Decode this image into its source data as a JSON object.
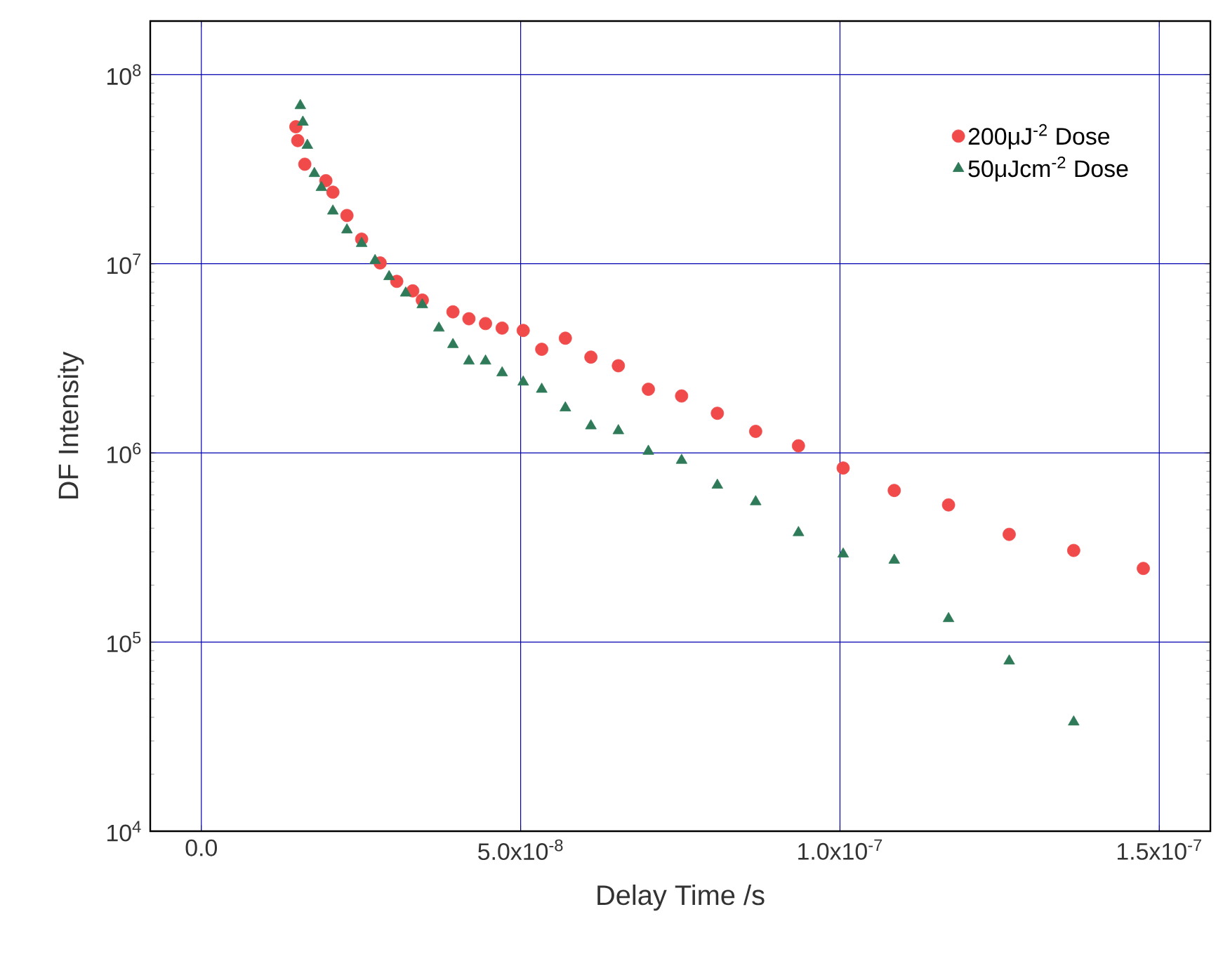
{
  "chart_data": {
    "type": "scatter",
    "xlabel": "Delay Time /s",
    "ylabel": "DF Intensity",
    "log": "y",
    "grid": true,
    "legend": "top right",
    "xlim": [
      -8e-09,
      1.58e-07
    ],
    "ylim": [
      10000,
      192000000.0
    ],
    "xticks": [
      {
        "value": 0,
        "label": "0.0"
      },
      {
        "value": 5e-08,
        "label": "5.0x10$^{-8}$"
      },
      {
        "value": 1e-07,
        "label": "1.0x10$^{-7}$"
      },
      {
        "value": 1.5e-07,
        "label": "1.5x10$^{-7}$"
      }
    ],
    "yticks": [
      {
        "value": 10000,
        "label": "10$^{4}$"
      },
      {
        "value": 100000,
        "label": "10$^{5}$"
      },
      {
        "value": 1000000,
        "label": "10$^{6}$"
      },
      {
        "value": 10000000,
        "label": "10$^{7}$"
      },
      {
        "value": 100000000,
        "label": "10$^{8}$"
      }
    ],
    "series": [
      {
        "name": "200μJ$^{-2}$ Dose",
        "color": "#f04a4a",
        "marker": "circle",
        "x": [
          1.48e-08,
          1.51e-08,
          1.62e-08,
          1.95e-08,
          2.06e-08,
          2.28e-08,
          2.51e-08,
          2.8e-08,
          3.06e-08,
          3.31e-08,
          3.46e-08,
          3.94e-08,
          4.19e-08,
          4.45e-08,
          4.71e-08,
          5.04e-08,
          5.33e-08,
          5.7e-08,
          6.1e-08,
          6.53e-08,
          7e-08,
          7.52e-08,
          8.08e-08,
          8.68e-08,
          9.35e-08,
          1.005e-07,
          1.085e-07,
          1.17e-07,
          1.265e-07,
          1.366e-07,
          1.475e-07
        ],
        "values": [
          53000000.0,
          44800000.0,
          33600000.0,
          27500000.0,
          23900000.0,
          18000000.0,
          13500000.0,
          10100000.0,
          8070000.0,
          7190000.0,
          6430000.0,
          5570000.0,
          5120000.0,
          4830000.0,
          4570000.0,
          4440000.0,
          3530000.0,
          4040000.0,
          3210000.0,
          2890000.0,
          2170000.0,
          2000000.0,
          1620000.0,
          1300000.0,
          1090000.0,
          832000.0,
          633000.0,
          531000.0,
          371000.0,
          305000.0,
          245000.0
        ]
      },
      {
        "name": "50μJcm$^{-2}$ Dose",
        "color": "#2f7a58",
        "marker": "triangle",
        "x": [
          1.55e-08,
          1.59e-08,
          1.66e-08,
          1.77e-08,
          1.88e-08,
          2.06e-08,
          2.28e-08,
          2.51e-08,
          2.72e-08,
          2.94e-08,
          3.2e-08,
          3.46e-08,
          3.72e-08,
          3.94e-08,
          4.19e-08,
          4.45e-08,
          4.71e-08,
          5.04e-08,
          5.33e-08,
          5.7e-08,
          6.1e-08,
          6.53e-08,
          7e-08,
          7.52e-08,
          8.08e-08,
          8.68e-08,
          9.35e-08,
          1.005e-07,
          1.085e-07,
          1.17e-07,
          1.265e-07,
          1.366e-07
        ],
        "values": [
          68600000.0,
          56100000.0,
          42300000.0,
          30000000.0,
          25300000.0,
          19000000.0,
          15100000.0,
          12800000.0,
          10400000.0,
          8550000.0,
          7000000.0,
          6070000.0,
          4570000.0,
          3740000.0,
          3060000.0,
          3060000.0,
          2650000.0,
          2370000.0,
          2170000.0,
          1730000.0,
          1390000.0,
          1310000.0,
          1020000.0,
          914000.0,
          675000.0,
          552000.0,
          379000.0,
          292000.0,
          271000.0,
          133000.0,
          79400.0,
          37800.0
        ]
      }
    ]
  }
}
